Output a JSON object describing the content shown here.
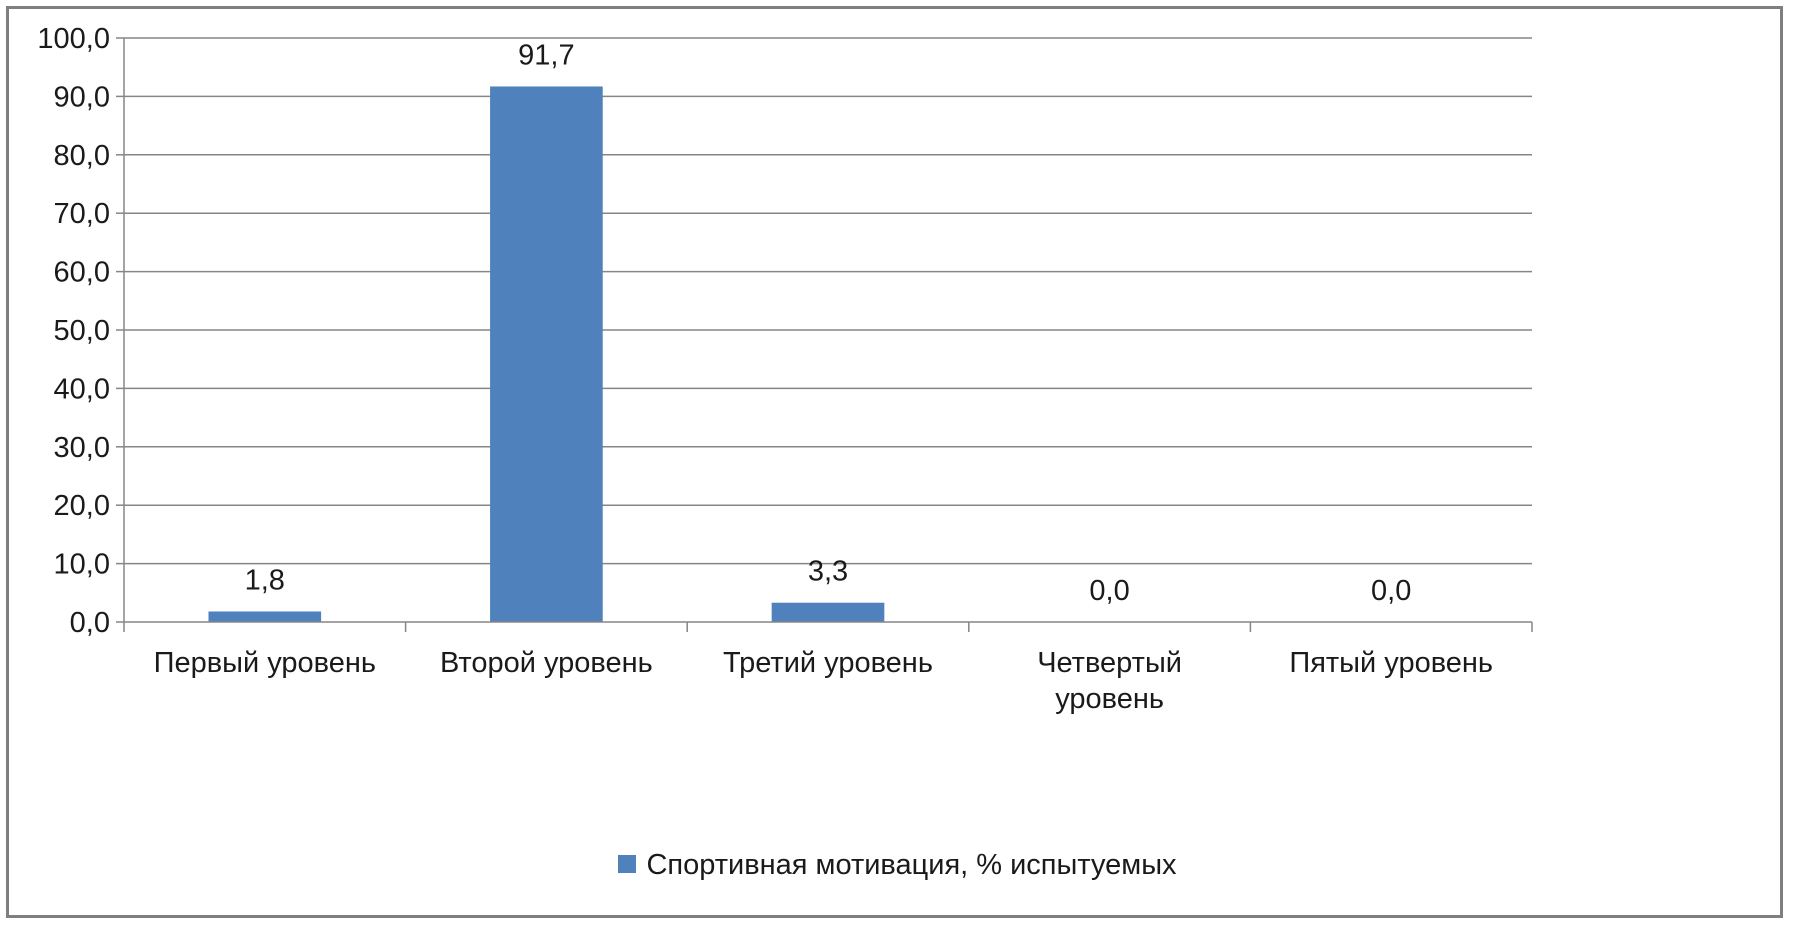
{
  "chart_data": {
    "type": "bar",
    "categories": [
      "Первый уровень",
      "Второй уровень",
      "Третий уровень",
      "Четвертый уровень",
      "Пятый уровень"
    ],
    "category_lines": [
      [
        "Первый уровень"
      ],
      [
        "Второй уровень"
      ],
      [
        "Третий уровень"
      ],
      [
        "Четвертый",
        "уровень"
      ],
      [
        "Пятый уровень"
      ]
    ],
    "series": [
      {
        "name": "Спортивная мотивация, % испытуемых",
        "values": [
          1.8,
          91.7,
          3.3,
          0.0,
          0.0
        ],
        "value_labels": [
          "1,8",
          "91,7",
          "3,3",
          "0,0",
          "0,0"
        ]
      }
    ],
    "ylim": [
      0,
      100
    ],
    "yticks": [
      0,
      10,
      20,
      30,
      40,
      50,
      60,
      70,
      80,
      90,
      100
    ],
    "ytick_labels": [
      "0,0",
      "10,0",
      "20,0",
      "30,0",
      "40,0",
      "50,0",
      "60,0",
      "70,0",
      "80,0",
      "90,0",
      "100,0"
    ],
    "grid": "horizontal",
    "legend_position": "bottom",
    "colors": {
      "bar": "#4f81bd",
      "grid": "#868686",
      "axis": "#868686"
    }
  },
  "legend": {
    "label": "Спортивная мотивация, % испытуемых",
    "color": "#4f81bd"
  }
}
